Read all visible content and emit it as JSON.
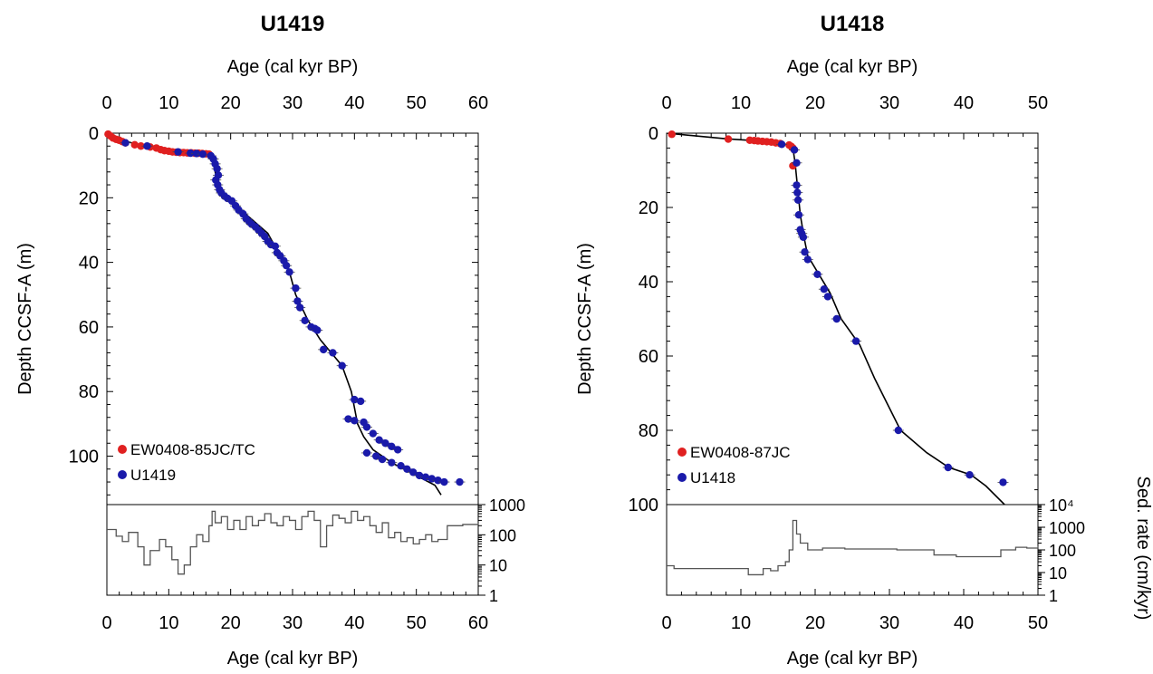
{
  "chart_data": [
    {
      "type": "scatter",
      "title": "U1419",
      "xlabel_top": "Age (cal kyr BP)",
      "xlabel_bottom": "Age (cal kyr BP)",
      "ylabel": "Depth CCSF-A (m)",
      "xlim": [
        0,
        60
      ],
      "ylim": [
        0,
        115
      ],
      "y_inverted": true,
      "x_ticks": [
        "0",
        "10",
        "20",
        "30",
        "40",
        "50",
        "60"
      ],
      "y_ticks": [
        "0",
        "20",
        "40",
        "60",
        "80",
        "100"
      ],
      "legend_position": "bottom-left",
      "series": [
        {
          "name": "EW0408-85JC/TC",
          "color": "#e02020",
          "x": [
            0.2,
            0.6,
            1.0,
            1.5,
            2.0,
            2.5,
            3.0,
            4.5,
            5.5,
            7.0,
            8.0,
            8.7,
            9.3,
            10.0,
            10.6,
            11.2,
            11.8,
            12.4,
            13.0,
            13.6,
            14.2,
            14.8,
            15.4,
            16.0,
            16.5
          ],
          "y": [
            0.3,
            0.9,
            1.5,
            1.9,
            2.2,
            2.6,
            3.0,
            3.6,
            4.0,
            4.3,
            4.6,
            5.1,
            5.4,
            5.6,
            5.8,
            5.9,
            6.0,
            6.0,
            6.1,
            6.1,
            6.2,
            6.2,
            6.3,
            6.4,
            6.5
          ]
        },
        {
          "name": "U1419",
          "color": "#1a1aaa",
          "x": [
            3.0,
            6.5,
            11.5,
            13.5,
            14.5,
            15.5,
            16.8,
            17.2,
            17.5,
            17.8,
            18.0,
            17.6,
            17.9,
            18.2,
            18.5,
            19.0,
            19.5,
            20.2,
            20.8,
            21.3,
            22.0,
            22.5,
            23.0,
            23.4,
            24.0,
            24.5,
            25.0,
            25.5,
            26.0,
            26.5,
            27.2,
            27.5,
            28.0,
            28.6,
            29.0,
            29.5,
            30.5,
            30.8,
            31.2,
            32.0,
            33.0,
            33.6,
            34.0,
            35.0,
            36.5,
            38.0,
            40.0,
            41.0,
            39.0,
            40.0,
            41.5,
            42.0,
            43.0,
            44.0,
            45.0,
            46.0,
            47.0,
            42.0,
            43.5,
            44.5,
            46.0,
            47.5,
            48.5,
            49.5,
            50.5,
            51.5,
            52.5,
            53.5,
            54.5,
            57.0
          ],
          "y": [
            3.0,
            4.0,
            5.8,
            6.2,
            6.3,
            6.5,
            7.0,
            8.0,
            9.5,
            11.0,
            13.0,
            14.5,
            16.0,
            17.5,
            18.5,
            19.5,
            20.2,
            21.0,
            22.5,
            23.8,
            25.0,
            26.5,
            27.5,
            28.2,
            29.0,
            30.0,
            31.0,
            32.0,
            33.5,
            34.5,
            35.0,
            37.0,
            38.0,
            39.5,
            41.0,
            43.0,
            48.0,
            52.0,
            54.0,
            58.0,
            60.0,
            60.5,
            61.0,
            67.0,
            68.0,
            72.0,
            82.5,
            83.0,
            88.5,
            89.0,
            89.5,
            91.0,
            93.0,
            95.0,
            96.0,
            97.0,
            98.0,
            99.0,
            100.0,
            101.0,
            102.0,
            103.0,
            104.0,
            105.0,
            106.0,
            106.5,
            107.0,
            107.5,
            108.0,
            108.0
          ]
        }
      ],
      "age_model_line": {
        "x": [
          0,
          3,
          6,
          10,
          12,
          14,
          16.8,
          17.3,
          17.7,
          18.5,
          20,
          23,
          26,
          28,
          29.5,
          30.5,
          32.5,
          34.5,
          38,
          39.5,
          40.5,
          41.5,
          43,
          46,
          50,
          53,
          54
        ],
        "y": [
          0,
          2.5,
          4,
          5.5,
          6,
          6.3,
          6.8,
          10,
          14,
          18,
          21,
          26,
          31,
          38,
          43,
          50,
          58,
          64,
          72,
          80,
          90,
          94,
          98,
          102,
          106,
          109,
          112
        ]
      },
      "sed_rate_panel": {
        "ylabel": "Sed. rate (cm/kyr)",
        "scale": "log",
        "ylim": [
          1,
          1000
        ],
        "y_ticks": [
          "1",
          "10",
          "100",
          "1000"
        ],
        "x": [
          0,
          1.5,
          2.5,
          3.5,
          5,
          6,
          7,
          8.5,
          9.5,
          10.5,
          11.5,
          12.5,
          13.5,
          14.5,
          15.5,
          16.5,
          17,
          17.5,
          18.5,
          19.5,
          20.5,
          21.5,
          22.5,
          23.5,
          24.5,
          25.5,
          26.5,
          27.5,
          28.5,
          29.5,
          30.5,
          31.5,
          32.5,
          33.5,
          34.5,
          35.5,
          36.5,
          37.5,
          38.5,
          39.5,
          40.5,
          41.5,
          42.5,
          43.5,
          44.5,
          45.5,
          46.5,
          47.5,
          48.5,
          49.5,
          50.5,
          51.5,
          52.5,
          53.5,
          55,
          57.5,
          60
        ],
        "values": [
          150,
          90,
          60,
          120,
          40,
          10,
          30,
          70,
          40,
          15,
          5,
          10,
          40,
          100,
          60,
          200,
          600,
          250,
          400,
          150,
          300,
          150,
          400,
          200,
          300,
          500,
          250,
          200,
          400,
          300,
          150,
          400,
          600,
          300,
          40,
          200,
          450,
          350,
          250,
          600,
          300,
          400,
          200,
          120,
          250,
          80,
          120,
          60,
          80,
          50,
          70,
          100,
          60,
          70,
          200,
          220,
          250
        ]
      }
    },
    {
      "type": "scatter",
      "title": "U1418",
      "xlabel_top": "Age (cal kyr BP)",
      "xlabel_bottom": "Age (cal kyr BP)",
      "ylabel": "Depth CCSF-A (m)",
      "xlim": [
        0,
        50
      ],
      "ylim": [
        0,
        100
      ],
      "y_inverted": true,
      "x_ticks": [
        "0",
        "10",
        "20",
        "30",
        "40",
        "50"
      ],
      "y_ticks": [
        "0",
        "20",
        "40",
        "60",
        "80",
        "100"
      ],
      "legend_position": "bottom-left",
      "series": [
        {
          "name": "EW0408-87JC",
          "color": "#e02020",
          "x": [
            0.7,
            8.3,
            11.2,
            11.8,
            12.3,
            12.9,
            13.5,
            14.1,
            14.7,
            15.3,
            16.5,
            16.8,
            17.0,
            17.2,
            17.0
          ],
          "y": [
            0.3,
            1.6,
            1.9,
            2.0,
            2.1,
            2.2,
            2.3,
            2.4,
            2.6,
            2.8,
            3.2,
            3.6,
            4.0,
            4.5,
            8.8
          ]
        },
        {
          "name": "U1418",
          "color": "#1a1aaa",
          "x": [
            15.5,
            17.2,
            17.5,
            17.5,
            17.6,
            17.7,
            17.8,
            18.0,
            18.2,
            18.4,
            18.6,
            19.0,
            20.3,
            21.2,
            21.7,
            22.9,
            25.5,
            31.2,
            37.9,
            40.8,
            45.3
          ],
          "y": [
            3.0,
            4.5,
            8.0,
            14.0,
            16.0,
            18.0,
            22.0,
            26.0,
            27.0,
            28.0,
            32.0,
            34.0,
            38.0,
            42.0,
            44.0,
            50.0,
            56.0,
            80.0,
            90.0,
            92.0,
            94.0
          ]
        }
      ],
      "age_model_line": {
        "x": [
          0,
          8,
          11,
          14,
          16,
          17,
          17.3,
          17.6,
          18,
          18.5,
          19,
          20.5,
          22,
          23.5,
          26,
          28,
          31.5,
          35,
          38,
          41,
          43,
          45.5
        ],
        "y": [
          0,
          1.5,
          1.9,
          2.4,
          3.0,
          4.0,
          8.0,
          14.0,
          22.0,
          28.0,
          33.0,
          38.0,
          43.0,
          50.0,
          57.0,
          66.0,
          80.0,
          86.0,
          90.0,
          92.0,
          95.0,
          100.0
        ]
      },
      "sed_rate_panel": {
        "ylabel": "Sed. rate (cm/kyr)",
        "scale": "log",
        "ylim": [
          1,
          10000
        ],
        "y_ticks": [
          "1",
          "10",
          "100",
          "1000",
          "10⁴"
        ],
        "x": [
          0,
          1,
          4,
          7.5,
          11,
          13,
          14,
          15,
          16,
          16.5,
          17,
          17.5,
          18,
          19,
          21,
          24,
          31,
          36,
          39,
          43,
          45,
          47,
          48.5,
          50
        ],
        "values": [
          20,
          15,
          15,
          15,
          8,
          15,
          12,
          20,
          30,
          100,
          2000,
          500,
          200,
          100,
          120,
          110,
          100,
          60,
          50,
          50,
          100,
          130,
          120,
          150
        ]
      }
    }
  ]
}
